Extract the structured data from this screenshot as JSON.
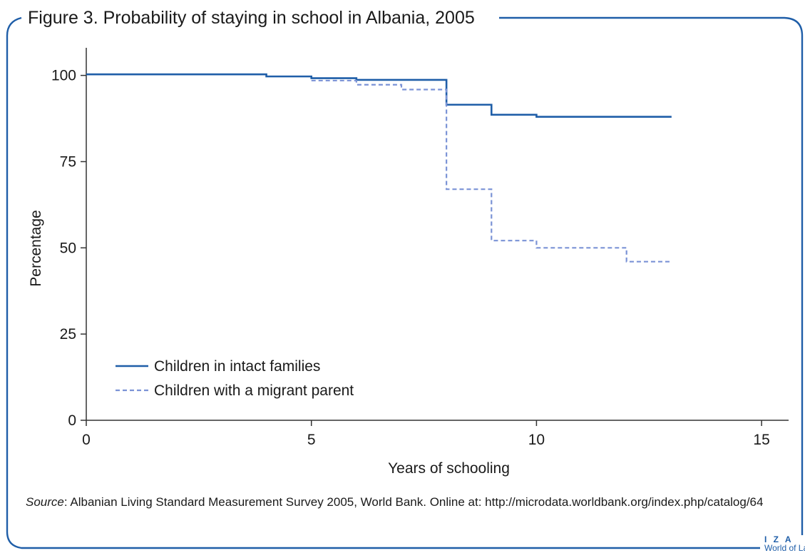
{
  "figure": {
    "title": "Figure 3. Probability of staying in school in Albania, 2005",
    "source_label": "Source",
    "source_text": ": Albanian Living Standard Measurement Survey 2005, World Bank. Online at: http://microdata.worldbank.org/index.php/catalog/64",
    "logo": {
      "line1": "I Z A",
      "line2": "World of Labor"
    },
    "frame_color": "#1f5ea8"
  },
  "chart_data": {
    "type": "line",
    "title": "Figure 3. Probability of staying in school in Albania, 2005",
    "xlabel": "Years of schooling",
    "ylabel": "Percentage",
    "xlim": [
      0,
      15.6
    ],
    "ylim": [
      0,
      108
    ],
    "xticks": [
      0,
      5,
      10,
      15
    ],
    "yticks": [
      0,
      25,
      50,
      75,
      100
    ],
    "grid": false,
    "legend_position": "bottom-left",
    "step": true,
    "series": [
      {
        "name": "Children in intact families",
        "color": "#1f5ea8",
        "style": "solid",
        "x": [
          0,
          4,
          5,
          6,
          8,
          9,
          10,
          13
        ],
        "y": [
          100.3,
          99.7,
          99.2,
          98.7,
          91.5,
          88.6,
          88.0,
          88.0
        ]
      },
      {
        "name": "Children with a migrant parent",
        "color": "#7b93d6",
        "style": "dashed",
        "x": [
          5,
          6,
          7,
          8,
          9,
          10,
          12,
          13
        ],
        "y": [
          98.5,
          97.3,
          95.9,
          67.0,
          52.1,
          50.0,
          46.0,
          46.0
        ]
      }
    ]
  }
}
